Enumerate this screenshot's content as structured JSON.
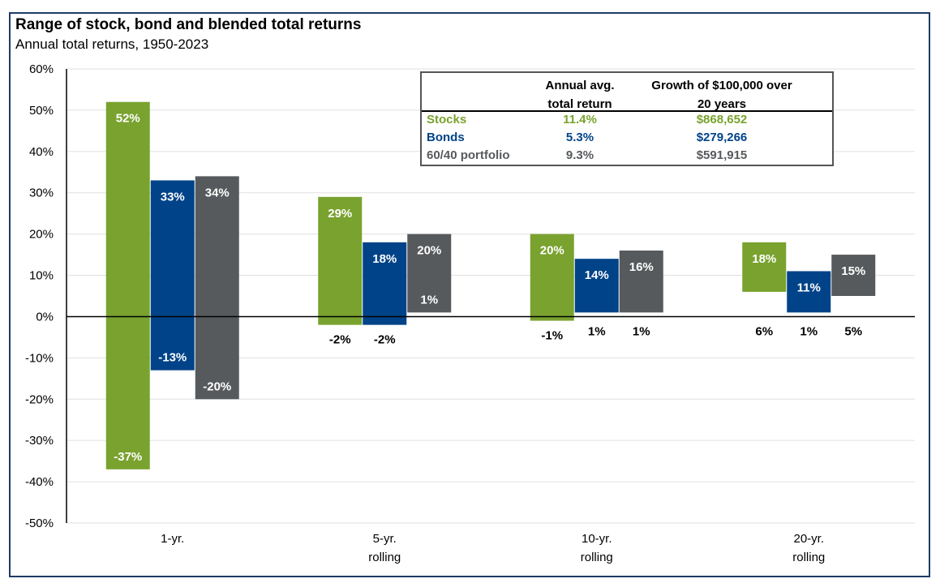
{
  "chart_data": {
    "type": "floating-bar",
    "title": "Range of stock, bond and blended total returns",
    "subtitle": "Annual total returns, 1950-2023",
    "categories": [
      "1-yr.",
      "5-yr. rolling",
      "10-yr. rolling",
      "20-yr. rolling"
    ],
    "category_lines": [
      [
        "1-yr."
      ],
      [
        "5-yr.",
        "rolling"
      ],
      [
        "10-yr.",
        "rolling"
      ],
      [
        "20-yr.",
        "rolling"
      ]
    ],
    "series": [
      {
        "name": "Stocks",
        "color": "#79a22f",
        "high": [
          52,
          29,
          20,
          18
        ],
        "low": [
          -37,
          -2,
          -1,
          6
        ]
      },
      {
        "name": "Bonds",
        "color": "#004388",
        "high": [
          33,
          18,
          14,
          11
        ],
        "low": [
          -13,
          -2,
          1,
          1
        ]
      },
      {
        "name": "60/40 portfolio",
        "color": "#575a5c",
        "high": [
          34,
          20,
          16,
          15
        ],
        "low": [
          -20,
          1,
          1,
          5
        ]
      }
    ],
    "ylim": [
      -50,
      60
    ],
    "yticks": [
      60,
      50,
      40,
      30,
      20,
      10,
      0,
      -10,
      -20,
      -30,
      -40,
      -50
    ],
    "ytick_format": "%",
    "grid": true,
    "table": {
      "headers": [
        "",
        "Annual avg. total return",
        "Growth of $100,000 over 20 years"
      ],
      "header_lines": [
        [
          ""
        ],
        [
          "Annual avg.",
          "total return"
        ],
        [
          "Growth of $100,000 over",
          "20 years"
        ]
      ],
      "rows": [
        {
          "label": "Stocks",
          "avg": "11.4%",
          "growth": "$868,652",
          "color": "#79a22f"
        },
        {
          "label": "Bonds",
          "avg": "5.3%",
          "growth": "$279,266",
          "color": "#004388"
        },
        {
          "label": "60/40 portfolio",
          "avg": "9.3%",
          "growth": "$591,915",
          "color": "#575a5c"
        }
      ]
    }
  }
}
